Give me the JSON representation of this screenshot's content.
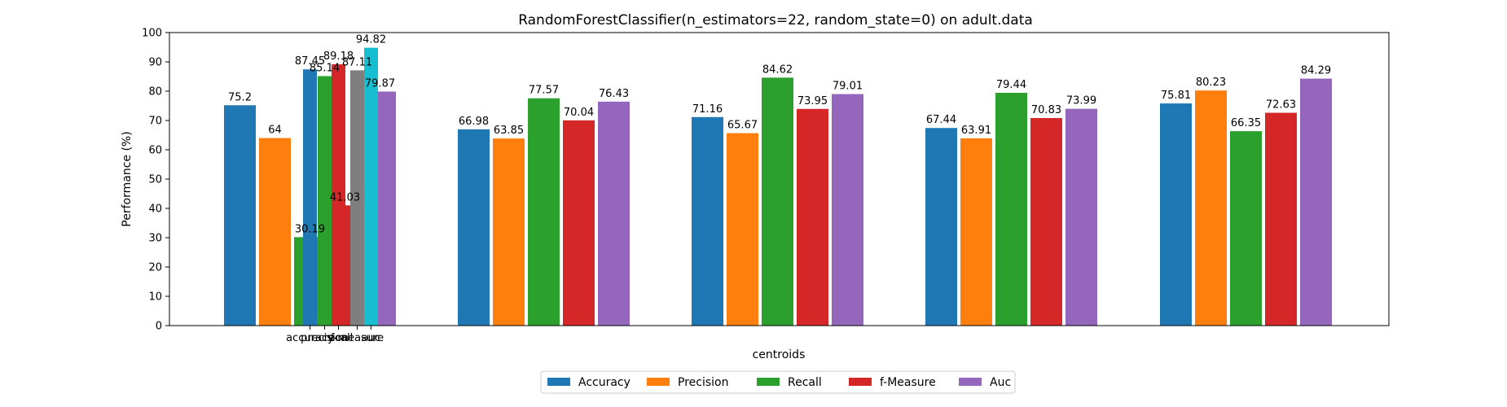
{
  "chart_data": {
    "type": "bar",
    "title": "RandomForestClassifier(n_estimators=22, random_state=0) on adult.data",
    "xlabel": "centroids",
    "ylabel": "Performance (%)",
    "ylim": [
      0,
      100
    ],
    "yticks": [
      0,
      10,
      20,
      30,
      40,
      50,
      60,
      70,
      80,
      90,
      100
    ],
    "legend_position": "bottom-center",
    "grid": false,
    "series": [
      {
        "name": "Accuracy",
        "color": "#1f77b4",
        "values": [
          75.2,
          66.98,
          71.16,
          67.44,
          75.81
        ]
      },
      {
        "name": "Precision",
        "color": "#ff7f0e",
        "values": [
          64,
          63.85,
          65.67,
          63.91,
          80.23
        ]
      },
      {
        "name": "Recall",
        "color": "#2ca02c",
        "values": [
          30.19,
          77.57,
          84.62,
          79.44,
          66.35
        ]
      },
      {
        "name": "f-Measure",
        "color": "#d62728",
        "values": [
          41.03,
          70.04,
          73.95,
          70.83,
          72.63
        ]
      },
      {
        "name": "Auc",
        "color": "#9467bd",
        "values": [
          79.87,
          76.43,
          79.01,
          73.99,
          84.29
        ]
      }
    ],
    "overlay_group": {
      "tick_labels": [
        "accuracy",
        "precision",
        "recall",
        "f-measure",
        "auc"
      ],
      "bars": [
        {
          "value": 87.45,
          "color": "#1f77b4"
        },
        {
          "value": 85.14,
          "color": "#2ca02c"
        },
        {
          "value": 89.18,
          "color": "#d62728"
        },
        {
          "value": 87.11,
          "color": "#7f7f7f"
        },
        {
          "value": 94.82,
          "color": "#17becf"
        }
      ]
    }
  }
}
